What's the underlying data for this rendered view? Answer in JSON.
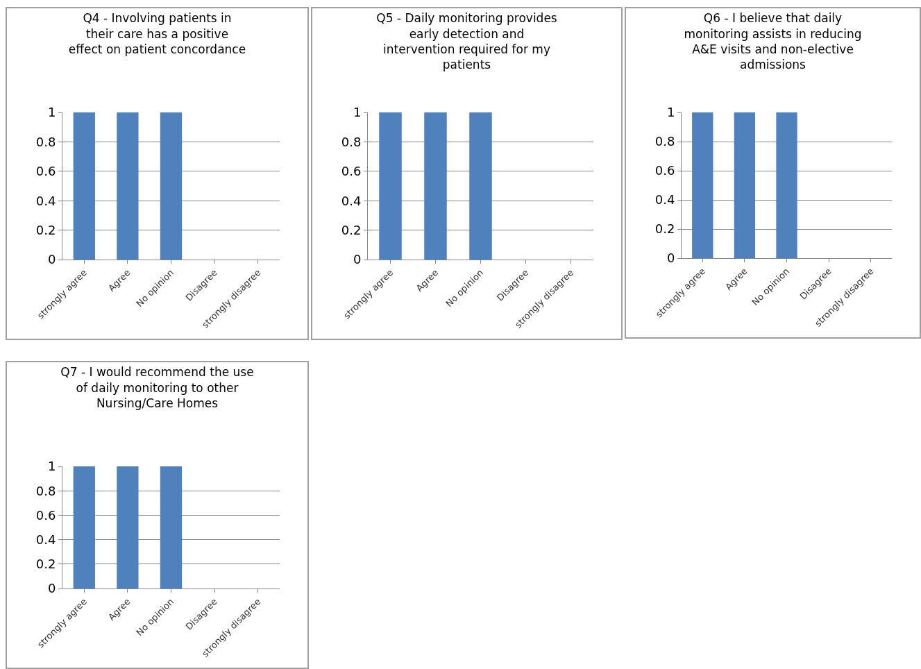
{
  "chart_data": [
    {
      "type": "bar",
      "title": "Q4 - Involving patients in their care has a positive effect on patient concordance",
      "categories": [
        "strongly agree",
        "Agree",
        "No opinion",
        "Disagree",
        "strongly disagree"
      ],
      "values": [
        1,
        1,
        1,
        0,
        0
      ],
      "color": "#4f81bd",
      "ylim": [
        0,
        1
      ],
      "yticks": [
        0,
        0.2,
        0.4,
        0.6,
        0.8,
        1
      ],
      "grid": "y"
    },
    {
      "type": "bar",
      "title": "Q5 - Daily monitoring provides early detection and intervention required for my patients",
      "categories": [
        "strongly agree",
        "Agree",
        "No opinion",
        "Disagree",
        "strongly disagree"
      ],
      "values": [
        1,
        1,
        1,
        0,
        0
      ],
      "color": "#4f81bd",
      "ylim": [
        0,
        1
      ],
      "yticks": [
        0,
        0.2,
        0.4,
        0.6,
        0.8,
        1
      ],
      "grid": "y"
    },
    {
      "type": "bar",
      "title": "Q6 - I believe that daily monitoring assists in reducing A&E visits and non-elective admissions",
      "categories": [
        "strongly agree",
        "Agree",
        "No opinion",
        "Disagree",
        "strongly disagree"
      ],
      "values": [
        1,
        1,
        1,
        0,
        0
      ],
      "color": "#4f81bd",
      "ylim": [
        0,
        1
      ],
      "yticks": [
        0,
        0.2,
        0.4,
        0.6,
        0.8,
        1
      ],
      "grid": "y"
    },
    {
      "type": "bar",
      "title": "Q7 - I would recommend the use of daily monitoring to other Nursing/Care Homes",
      "categories": [
        "strongly agree",
        "Agree",
        "No opinion",
        "Disagree",
        "strongly disagree"
      ],
      "values": [
        1,
        1,
        1,
        0,
        0
      ],
      "color": "#4f81bd",
      "ylim": [
        0,
        1
      ],
      "yticks": [
        0,
        0.2,
        0.4,
        0.6,
        0.8,
        1
      ],
      "grid": "y"
    }
  ]
}
